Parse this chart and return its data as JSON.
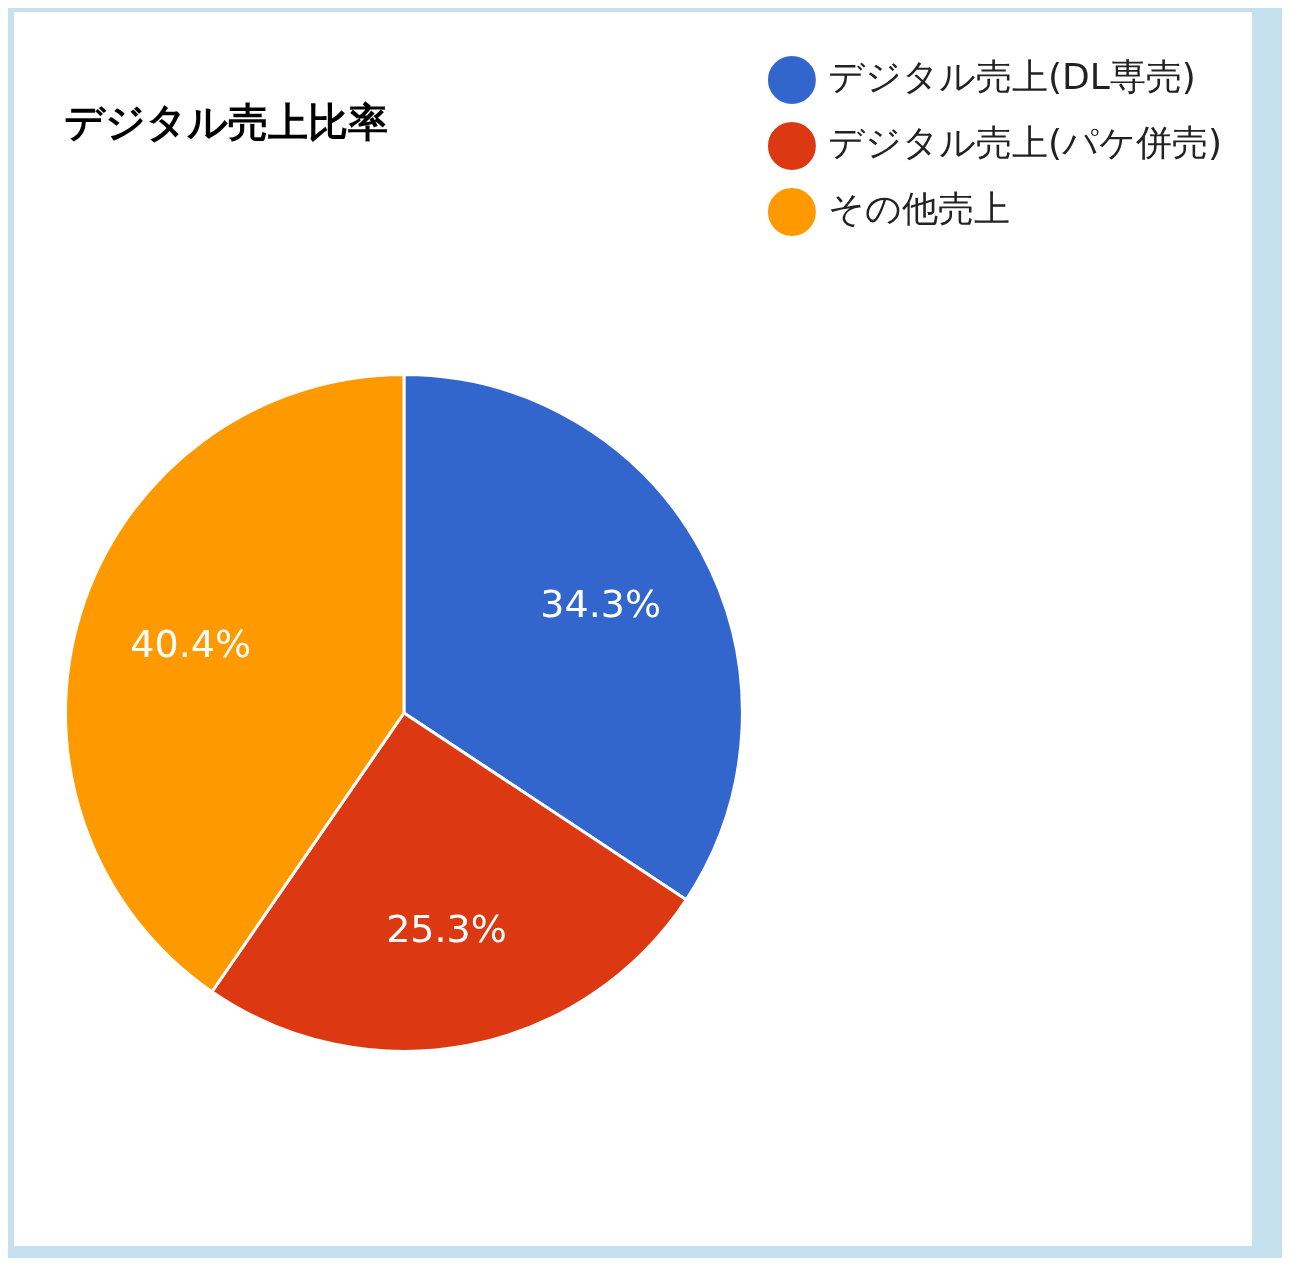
{
  "chart_data": {
    "type": "pie",
    "title": "デジタル売上比率",
    "categories": [
      "デジタル売上(DL専売)",
      "デジタル売上(パケ併売)",
      "その他売上"
    ],
    "values": [
      34.3,
      25.3,
      40.4
    ],
    "colors": [
      "#3366cc",
      "#dc3912",
      "#ff9900"
    ],
    "value_labels": [
      "34.3%",
      "25.3%",
      "40.4%"
    ],
    "legend": "right"
  }
}
